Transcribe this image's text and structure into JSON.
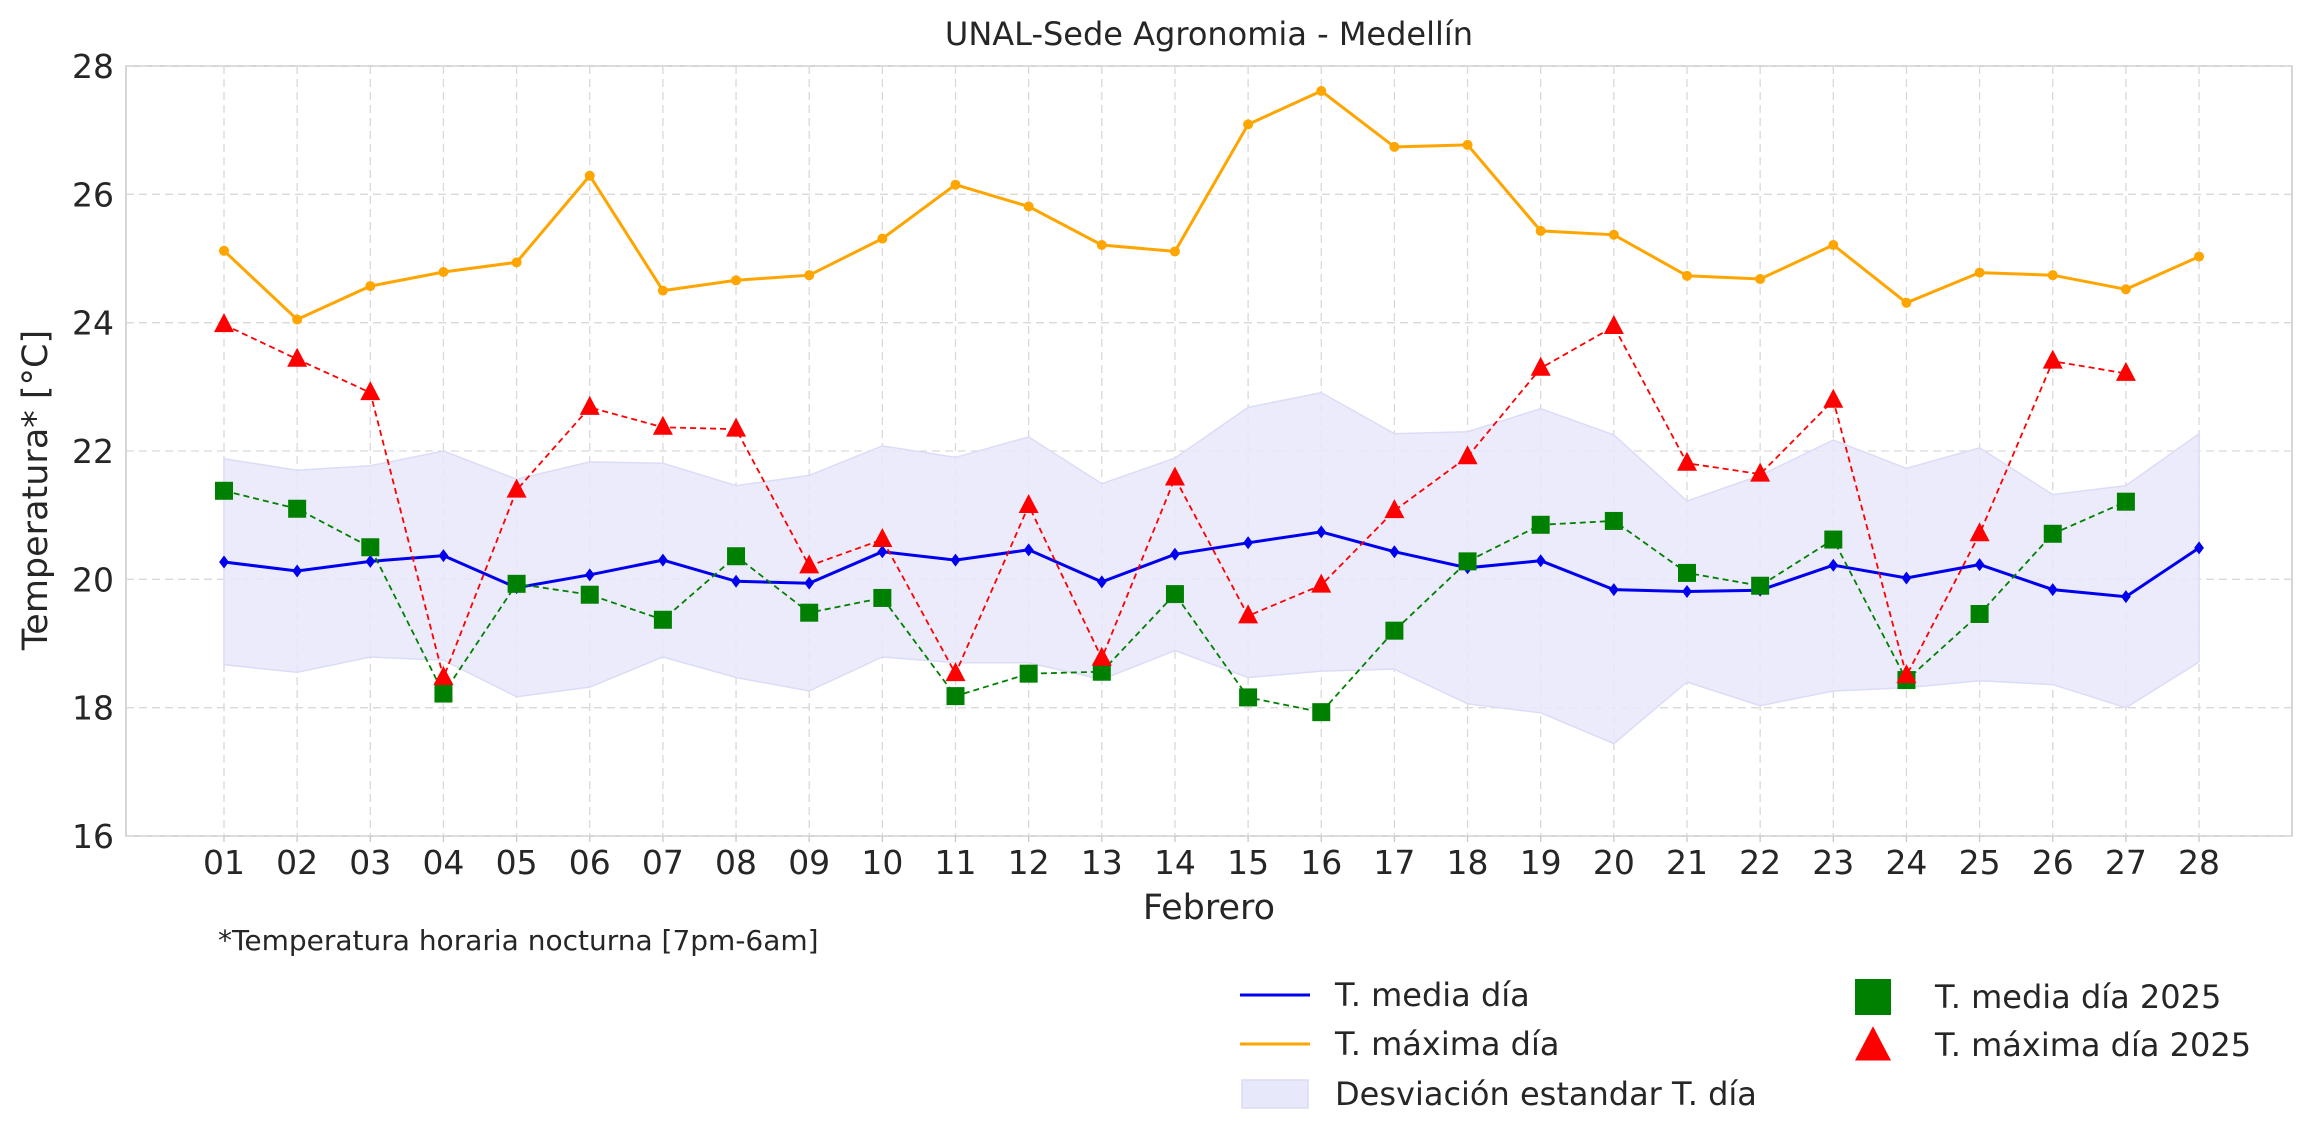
{
  "chart_data": {
    "type": "line",
    "title": "UNAL-Sede Agronomia - Medellín",
    "xlabel": "Febrero",
    "ylabel": "Temperatura* [°C]",
    "note": "*Temperatura horaria nocturna [7pm-6am]",
    "ylim": [
      16,
      28
    ],
    "yticks": [
      "16",
      "18",
      "20",
      "22",
      "24",
      "26",
      "28"
    ],
    "grid": true,
    "legend_position": "bottom-right",
    "categories": [
      "01",
      "02",
      "03",
      "04",
      "05",
      "06",
      "07",
      "08",
      "09",
      "10",
      "11",
      "12",
      "13",
      "14",
      "15",
      "16",
      "17",
      "18",
      "19",
      "20",
      "21",
      "22",
      "23",
      "24",
      "25",
      "26",
      "27",
      "28"
    ],
    "series": [
      {
        "name": "T. media día",
        "style": "line",
        "color": "#0000ee",
        "marker": "diamond",
        "values": [
          20.27,
          20.13,
          20.28,
          20.37,
          19.87,
          20.07,
          20.3,
          19.97,
          19.94,
          20.43,
          20.3,
          20.46,
          19.96,
          20.39,
          20.57,
          20.74,
          20.43,
          20.18,
          20.29,
          19.84,
          19.81,
          19.83,
          20.22,
          20.02,
          20.23,
          19.84,
          19.73,
          20.49
        ]
      },
      {
        "name": "T. máxima día",
        "style": "line",
        "color": "#ffa500",
        "marker": "circle",
        "values": [
          25.12,
          24.05,
          24.57,
          24.79,
          24.94,
          26.29,
          24.5,
          24.66,
          24.74,
          25.31,
          26.15,
          25.81,
          25.21,
          25.11,
          27.09,
          27.61,
          26.74,
          26.77,
          25.43,
          25.37,
          24.73,
          24.68,
          25.21,
          24.31,
          24.78,
          24.74,
          24.52,
          25.03
        ]
      },
      {
        "name": "T. media día 2025",
        "style": "dashed-markers",
        "color": "#008000",
        "marker": "square",
        "values": [
          21.38,
          21.1,
          20.5,
          18.22,
          19.93,
          19.76,
          19.37,
          20.36,
          19.48,
          19.71,
          18.18,
          18.53,
          18.56,
          19.77,
          18.16,
          17.93,
          19.2,
          20.28,
          20.85,
          20.91,
          20.1,
          19.9,
          20.62,
          18.43,
          19.46,
          20.71,
          21.21,
          null
        ]
      },
      {
        "name": "T. máxima día 2025",
        "style": "dashed-markers",
        "color": "#ff0000",
        "marker": "triangle",
        "values": [
          23.97,
          23.43,
          22.91,
          18.47,
          21.39,
          22.68,
          22.37,
          22.34,
          20.21,
          20.62,
          18.53,
          21.15,
          18.77,
          21.58,
          19.43,
          19.91,
          21.07,
          21.91,
          23.29,
          23.94,
          21.81,
          21.64,
          22.79,
          18.5,
          20.71,
          23.4,
          23.21,
          null
        ]
      }
    ],
    "std_band": {
      "name": "Desviación estandar T. día",
      "color": "#e8e8fb",
      "upper": [
        21.88,
        21.7,
        21.77,
        22.0,
        21.56,
        21.83,
        21.81,
        21.46,
        21.62,
        22.08,
        21.9,
        22.22,
        21.49,
        21.89,
        22.68,
        22.91,
        22.27,
        22.3,
        22.66,
        22.25,
        21.22,
        21.62,
        22.17,
        21.73,
        22.05,
        21.32,
        21.46,
        22.27
      ],
      "lower": [
        18.67,
        18.55,
        18.79,
        18.74,
        18.17,
        18.32,
        18.79,
        18.47,
        18.26,
        18.79,
        18.7,
        18.7,
        18.44,
        18.89,
        18.47,
        18.57,
        18.6,
        18.06,
        17.92,
        17.44,
        18.4,
        18.03,
        18.26,
        18.31,
        18.42,
        18.36,
        18.0,
        18.71
      ]
    }
  }
}
